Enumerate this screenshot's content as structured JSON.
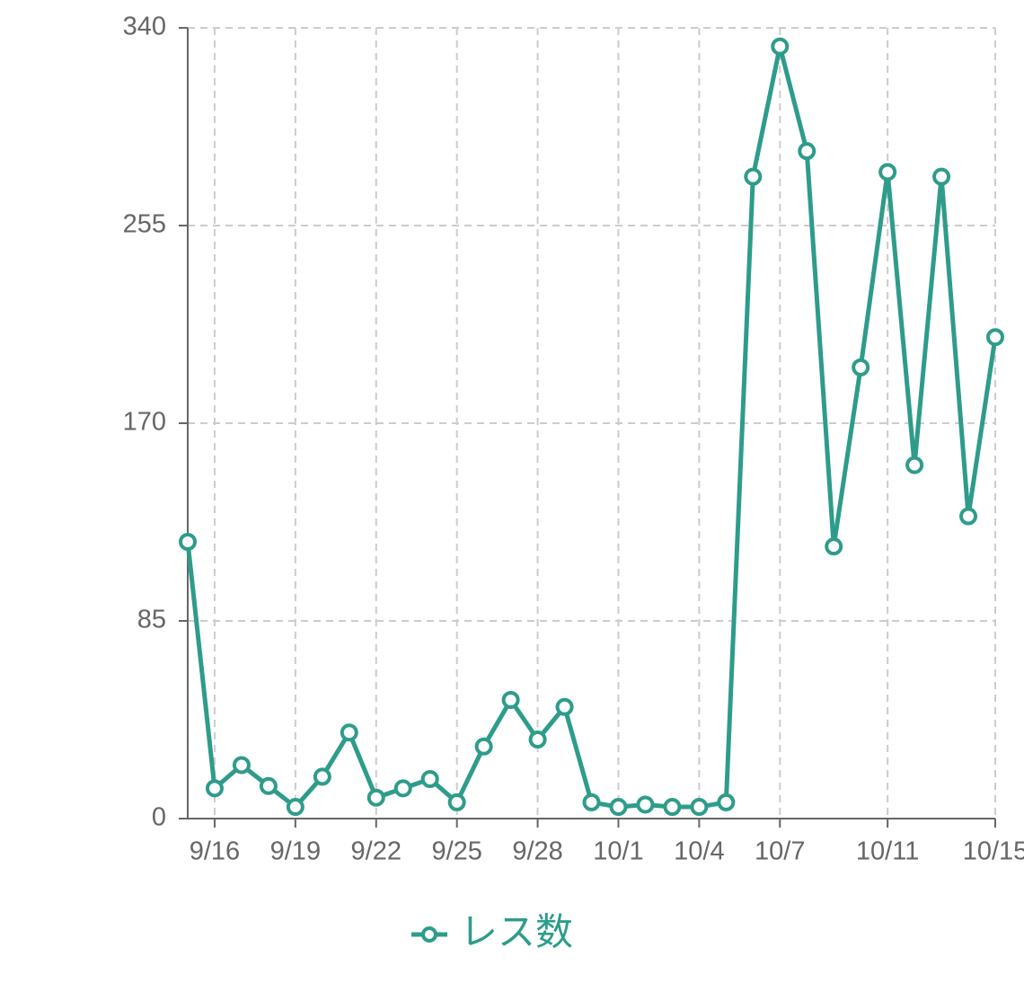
{
  "chart_data": {
    "type": "line",
    "categories": [
      null,
      "9/16",
      null,
      null,
      "9/19",
      null,
      null,
      "9/22",
      null,
      null,
      "9/25",
      null,
      null,
      "9/28",
      null,
      null,
      "10/1",
      null,
      null,
      "10/4",
      null,
      null,
      "10/7",
      null,
      null,
      null,
      "10/11",
      null,
      null,
      null,
      "10/15"
    ],
    "series": [
      {
        "name": "レス数",
        "color": "#2e9c8a",
        "values": [
          119,
          13,
          23,
          14,
          5,
          18,
          37,
          9,
          13,
          17,
          7,
          31,
          51,
          34,
          48,
          7,
          5,
          6,
          5,
          5,
          7,
          276,
          332,
          287,
          117,
          194,
          278,
          152,
          276,
          130,
          207
        ]
      }
    ],
    "ylim": [
      0,
      340
    ],
    "yticks": [
      0,
      85,
      170,
      255,
      340
    ],
    "grid": true,
    "legend": "bottom"
  }
}
